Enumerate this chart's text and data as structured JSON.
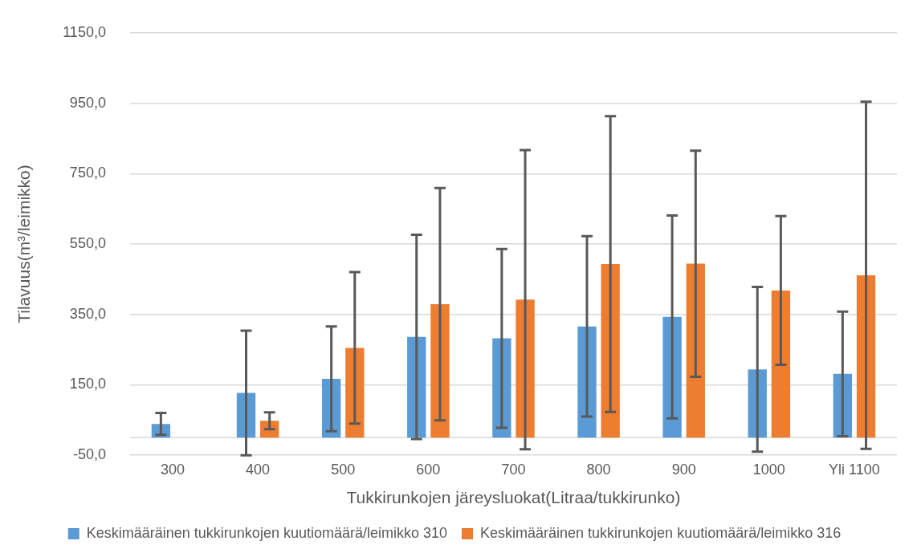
{
  "chart_data": {
    "type": "bar",
    "xlabel": "Tukkirunkojen järeysluokat(Litraa/tukkirunko)",
    "ylabel": "Tilavuus(m³/leimikko)",
    "categories": [
      "300",
      "400",
      "500",
      "600",
      "700",
      "800",
      "900",
      "1000",
      "Yli 1100"
    ],
    "series": [
      {
        "name": "Keskimääräinen tukkirunkojen kuutiomäärä/leimikko 310",
        "color": "#5b9bd5",
        "values": [
          39,
          127,
          167,
          286,
          282,
          316,
          343,
          194,
          181
        ],
        "errors": [
          31,
          177,
          149,
          290,
          254,
          256,
          288,
          234,
          177
        ]
      },
      {
        "name": "Keskimääräinen tukkirunkojen kuutiomäärä/leimikko 316",
        "color": "#ed7d31",
        "values": [
          null,
          48,
          255,
          379,
          392,
          493,
          494,
          418,
          461
        ],
        "errors": [
          null,
          24,
          215,
          330,
          425,
          420,
          321,
          211,
          493
        ]
      }
    ],
    "ylim": [
      -50,
      1150
    ],
    "yticks": [
      {
        "value": -50,
        "label": "-50,0"
      },
      {
        "value": 150,
        "label": "150,0"
      },
      {
        "value": 350,
        "label": "350,0"
      },
      {
        "value": 550,
        "label": "550,0"
      },
      {
        "value": 750,
        "label": "750,0"
      },
      {
        "value": 950,
        "label": "950,0"
      },
      {
        "value": 1150,
        "label": "1150,0"
      }
    ],
    "grid": "y",
    "legend": "bottom"
  }
}
